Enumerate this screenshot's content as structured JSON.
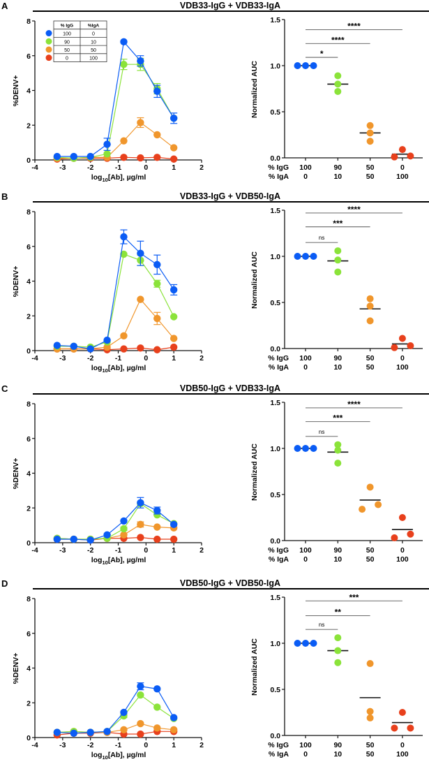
{
  "colors": {
    "blue": "#0a5cf5",
    "green": "#8be33a",
    "orange": "#f0962c",
    "red": "#e8401c",
    "axis": "#111111"
  },
  "legend": {
    "headers": [
      "% IgG",
      "%IgA"
    ],
    "rows": [
      {
        "igg": "100",
        "iga": "0",
        "color": "blue"
      },
      {
        "igg": "90",
        "iga": "10",
        "color": "green"
      },
      {
        "igg": "50",
        "iga": "50",
        "color": "orange"
      },
      {
        "igg": "0",
        "iga": "100",
        "color": "red"
      }
    ]
  },
  "chart_data": [
    {
      "panel": "A",
      "title": "VDB33-IgG + VDB33-IgA",
      "curve": {
        "type": "line",
        "ylabel": "%DENV+",
        "xlabel_parts": [
          "log",
          "10",
          "[Ab], µg/ml"
        ],
        "xlim": [
          -4,
          2
        ],
        "ylim": [
          0,
          8
        ],
        "xticks": [
          "-4",
          "-3",
          "-2",
          "-1",
          "0",
          "1",
          "2"
        ],
        "yticks": [
          "0",
          "2",
          "4",
          "6",
          "8"
        ],
        "x": [
          -3.2,
          -2.6,
          -2,
          -1.4,
          -0.8,
          -0.2,
          0.4,
          1
        ],
        "series": [
          {
            "name": "100/0",
            "color": "blue",
            "values": [
              0.2,
              0.2,
              0.2,
              0.9,
              6.8,
              5.7,
              3.95,
              2.4
            ],
            "sem": [
              0,
              0,
              0,
              0.35,
              0,
              0.3,
              0.35,
              0.3
            ]
          },
          {
            "name": "90/10",
            "color": "green",
            "values": [
              0.15,
              0.1,
              0.15,
              0.35,
              5.5,
              5.5,
              4.1,
              2.4
            ],
            "sem": [
              0,
              0,
              0,
              0,
              0.3,
              0.35,
              0.3,
              0
            ]
          },
          {
            "name": "50/50",
            "color": "orange",
            "values": [
              0.1,
              0.1,
              0.15,
              0.15,
              1.1,
              2.15,
              1.45,
              0.7
            ],
            "sem": [
              0,
              0,
              0,
              0,
              0,
              0.28,
              0,
              0
            ]
          },
          {
            "name": "0/100",
            "color": "red",
            "values": [
              0.05,
              0.1,
              0.1,
              0.1,
              0.15,
              0.12,
              0.15,
              0.05
            ],
            "sem": [
              0,
              0,
              0,
              0,
              0,
              0,
              0,
              0
            ]
          }
        ]
      },
      "auc": {
        "type": "scatter",
        "ylabel": "Normalized AUC",
        "ylim": [
          0,
          1.5
        ],
        "yticks": [
          "0.0",
          "0.5",
          "1.0",
          "1.5"
        ],
        "row_labels": [
          "% IgG",
          "% IgA"
        ],
        "groups": [
          {
            "igg": "100",
            "iga": "0",
            "color": "blue",
            "points": [
              1,
              1,
              1
            ],
            "mean": 1.0
          },
          {
            "igg": "90",
            "iga": "10",
            "color": "green",
            "points": [
              0.89,
              0.8,
              0.72
            ],
            "mean": 0.8
          },
          {
            "igg": "50",
            "iga": "50",
            "color": "orange",
            "points": [
              0.35,
              0.27,
              0.18
            ],
            "mean": 0.27
          },
          {
            "igg": "0",
            "iga": "100",
            "color": "red",
            "points": [
              0.01,
              0.09,
              0.02
            ],
            "mean": 0.04
          }
        ],
        "comparisons": [
          {
            "to": 1,
            "label": "*",
            "level": 1.09
          },
          {
            "to": 2,
            "label": "****",
            "level": 1.24
          },
          {
            "to": 3,
            "label": "****",
            "level": 1.39
          }
        ]
      }
    },
    {
      "panel": "B",
      "title": "VDB33-IgG + VDB50-IgA",
      "curve": {
        "type": "line",
        "ylabel": "%DENV+",
        "xlabel_parts": [
          "log",
          "10",
          "[Ab], µg/ml"
        ],
        "xlim": [
          -4,
          2
        ],
        "ylim": [
          0,
          8
        ],
        "xticks": [
          "-4",
          "-3",
          "-2",
          "-1",
          "0",
          "1",
          "2"
        ],
        "yticks": [
          "0",
          "2",
          "4",
          "6",
          "8"
        ],
        "x": [
          -3.2,
          -2.6,
          -2,
          -1.4,
          -0.8,
          -0.2,
          0.4,
          1
        ],
        "series": [
          {
            "name": "100/0",
            "color": "blue",
            "values": [
              0.3,
              0.25,
              0.1,
              0.6,
              6.55,
              5.6,
              4.95,
              3.5
            ],
            "sem": [
              0,
              0,
              0,
              0,
              0.4,
              0.7,
              0.55,
              0.3
            ]
          },
          {
            "name": "90/10",
            "color": "green",
            "values": [
              0.25,
              0.25,
              0.2,
              0.5,
              5.55,
              5.2,
              3.85,
              1.95
            ],
            "sem": [
              0,
              0,
              0,
              0,
              0,
              0.3,
              0.2,
              0
            ]
          },
          {
            "name": "50/50",
            "color": "orange",
            "values": [
              0.1,
              0.1,
              0.1,
              0.2,
              0.85,
              2.95,
              1.85,
              0.7
            ],
            "sem": [
              0,
              0,
              0,
              0,
              0,
              0,
              0.35,
              0
            ]
          },
          {
            "name": "0/100",
            "color": "red",
            "values": [
              0.1,
              0.1,
              0.1,
              0.05,
              0.1,
              0.15,
              0.05,
              0.2
            ],
            "sem": [
              0,
              0,
              0,
              0,
              0,
              0,
              0,
              0
            ]
          }
        ]
      },
      "auc": {
        "type": "scatter",
        "ylabel": "Normalized AUC",
        "ylim": [
          0,
          1.5
        ],
        "yticks": [
          "0.0",
          "0.5",
          "1.0",
          "1.5"
        ],
        "row_labels": [
          "% IgG",
          "% IgA"
        ],
        "groups": [
          {
            "igg": "100",
            "iga": "0",
            "color": "blue",
            "points": [
              1,
              1,
              1
            ],
            "mean": 1.0
          },
          {
            "igg": "90",
            "iga": "10",
            "color": "green",
            "points": [
              1.06,
              0.96,
              0.83
            ],
            "mean": 0.95
          },
          {
            "igg": "50",
            "iga": "50",
            "color": "orange",
            "points": [
              0.54,
              0.46,
              0.3
            ],
            "mean": 0.43
          },
          {
            "igg": "0",
            "iga": "100",
            "color": "red",
            "points": [
              0.01,
              0.11,
              0.03
            ],
            "mean": 0.05
          }
        ],
        "comparisons": [
          {
            "to": 1,
            "label": "ns",
            "level": 1.15
          },
          {
            "to": 2,
            "label": "***",
            "level": 1.32
          },
          {
            "to": 3,
            "label": "****",
            "level": 1.47
          }
        ]
      }
    },
    {
      "panel": "C",
      "title": "VDB50-IgG + VDB33-IgA",
      "curve": {
        "type": "line",
        "ylabel": "%DENV+",
        "xlabel_parts": [
          "log",
          "10",
          "[Ab], µg/ml"
        ],
        "xlim": [
          -4,
          2
        ],
        "ylim": [
          0,
          8
        ],
        "xticks": [
          "-4",
          "-3",
          "-2",
          "-1",
          "0",
          "1",
          "2"
        ],
        "yticks": [
          "0",
          "2",
          "4",
          "6",
          "8"
        ],
        "x": [
          -3.2,
          -2.6,
          -2,
          -1.4,
          -0.8,
          -0.2,
          0.4,
          1
        ],
        "series": [
          {
            "name": "100/0",
            "color": "blue",
            "values": [
              0.2,
              0.2,
              0.15,
              0.45,
              1.25,
              2.3,
              1.85,
              1.05
            ],
            "sem": [
              0,
              0,
              0,
              0,
              0,
              0.3,
              0.2,
              0
            ]
          },
          {
            "name": "90/10",
            "color": "green",
            "values": [
              0.25,
              0.2,
              0.2,
              0.25,
              0.8,
              2.25,
              1.6,
              1.1
            ],
            "sem": [
              0,
              0,
              0,
              0,
              0.1,
              0,
              0,
              0
            ]
          },
          {
            "name": "50/50",
            "color": "orange",
            "values": [
              0.25,
              0.2,
              0.2,
              0.25,
              0.45,
              1.05,
              0.9,
              0.85
            ],
            "sem": [
              0,
              0,
              0,
              0,
              0,
              0.15,
              0,
              0
            ]
          },
          {
            "name": "0/100",
            "color": "red",
            "values": [
              0.2,
              0.2,
              0.15,
              0.25,
              0.25,
              0.3,
              0.2,
              0.2
            ],
            "sem": [
              0,
              0,
              0,
              0,
              0,
              0,
              0,
              0
            ]
          }
        ]
      },
      "auc": {
        "type": "scatter",
        "ylabel": "Normalized AUC",
        "ylim": [
          0,
          1.5
        ],
        "yticks": [
          "0.0",
          "0.5",
          "1.0",
          "1.5"
        ],
        "row_labels": [
          "% IgG",
          "% IgA"
        ],
        "groups": [
          {
            "igg": "100",
            "iga": "0",
            "color": "blue",
            "points": [
              1,
              1,
              1
            ],
            "mean": 1.0
          },
          {
            "igg": "90",
            "iga": "10",
            "color": "green",
            "points": [
              1.04,
              0.84,
              0.98
            ],
            "mean": 0.96
          },
          {
            "igg": "50",
            "iga": "50",
            "color": "orange",
            "points": [
              0.34,
              0.58,
              0.39
            ],
            "mean": 0.44
          },
          {
            "igg": "0",
            "iga": "100",
            "color": "red",
            "points": [
              0.03,
              0.25,
              0.07
            ],
            "mean": 0.12
          }
        ],
        "comparisons": [
          {
            "to": 1,
            "label": "ns",
            "level": 1.13
          },
          {
            "to": 2,
            "label": "***",
            "level": 1.29
          },
          {
            "to": 3,
            "label": "****",
            "level": 1.44
          }
        ]
      }
    },
    {
      "panel": "D",
      "title": "VDB50-IgG + VDB50-IgA",
      "curve": {
        "type": "line",
        "ylabel": "%DENV+",
        "xlabel_parts": [
          "log",
          "10",
          "[Ab], µg/ml"
        ],
        "xlim": [
          -4,
          2
        ],
        "ylim": [
          0,
          8
        ],
        "xticks": [
          "-4",
          "-3",
          "-2",
          "-1",
          "0",
          "1",
          "2"
        ],
        "yticks": [
          "0",
          "2",
          "4",
          "6",
          "8"
        ],
        "x": [
          -3.2,
          -2.6,
          -2,
          -1.4,
          -0.8,
          -0.2,
          0.4,
          1
        ],
        "series": [
          {
            "name": "100/0",
            "color": "blue",
            "values": [
              0.3,
              0.25,
              0.3,
              0.35,
              1.45,
              2.95,
              2.8,
              1.15
            ],
            "sem": [
              0,
              0,
              0,
              0,
              0,
              0.2,
              0,
              0
            ]
          },
          {
            "name": "90/10",
            "color": "green",
            "values": [
              0.3,
              0.35,
              0.3,
              0.35,
              1.25,
              2.45,
              1.75,
              1.1
            ],
            "sem": [
              0,
              0,
              0,
              0,
              0.1,
              0,
              0,
              0
            ]
          },
          {
            "name": "50/50",
            "color": "orange",
            "values": [
              0.3,
              0.35,
              0.3,
              0.3,
              0.45,
              0.8,
              0.55,
              0.45
            ],
            "sem": [
              0,
              0,
              0,
              0,
              0,
              0,
              0,
              0
            ]
          },
          {
            "name": "0/100",
            "color": "red",
            "values": [
              0.15,
              0.25,
              0.25,
              0.3,
              0.2,
              0.2,
              0.35,
              0.35
            ],
            "sem": [
              0,
              0,
              0,
              0,
              0,
              0,
              0,
              0
            ]
          }
        ]
      },
      "auc": {
        "type": "scatter",
        "ylabel": "Normalized AUC",
        "ylim": [
          0,
          1.5
        ],
        "yticks": [
          "0.0",
          "0.5",
          "1.0",
          "1.5"
        ],
        "row_labels": [
          "% IgG",
          "% IgA"
        ],
        "groups": [
          {
            "igg": "100",
            "iga": "0",
            "color": "blue",
            "points": [
              1,
              1,
              1
            ],
            "mean": 1.0
          },
          {
            "igg": "90",
            "iga": "10",
            "color": "green",
            "points": [
              1.06,
              0.92,
              0.79
            ],
            "mean": 0.92
          },
          {
            "igg": "50",
            "iga": "50",
            "color": "orange",
            "points": [
              0.78,
              0.26,
              0.19
            ],
            "mean": 0.41
          },
          {
            "igg": "0",
            "iga": "100",
            "color": "red",
            "points": [
              0.08,
              0.25,
              0.08
            ],
            "mean": 0.14
          }
        ],
        "comparisons": [
          {
            "to": 1,
            "label": "ns",
            "level": 1.15
          },
          {
            "to": 2,
            "label": "**",
            "level": 1.3
          },
          {
            "to": 3,
            "label": "***",
            "level": 1.46
          }
        ]
      }
    }
  ]
}
